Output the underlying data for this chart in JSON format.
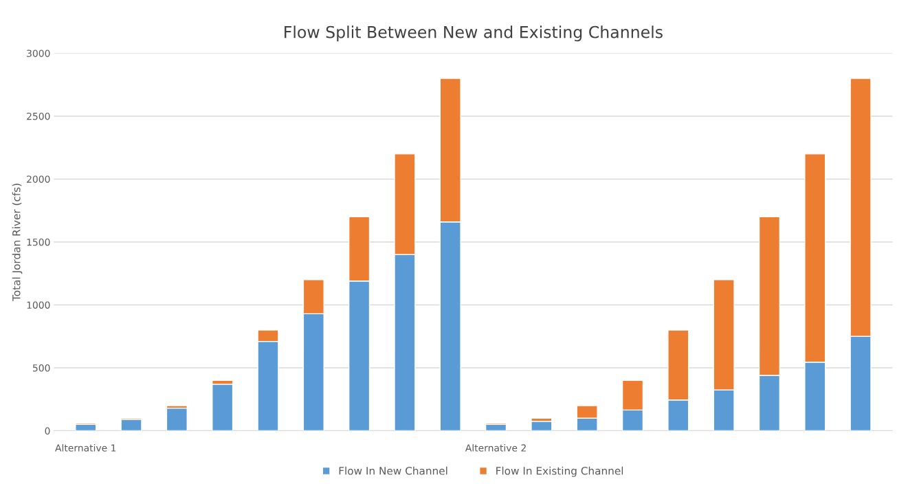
{
  "chart_data": {
    "type": "bar",
    "title": "Flow Split Between New and Existing Channels",
    "ylabel": "Total Jordan River (cfs)",
    "categories": [
      "Alternative 1",
      null,
      null,
      null,
      null,
      null,
      null,
      null,
      null,
      "Alternative 2",
      null,
      null,
      null,
      null,
      null,
      null,
      null,
      null
    ],
    "stacked": true,
    "series": [
      {
        "name": "Flow In New Channel",
        "color": "#5b9bd5",
        "values": [
          50,
          90,
          180,
          370,
          710,
          930,
          1190,
          1400,
          1660,
          50,
          75,
          100,
          165,
          245,
          325,
          440,
          545,
          750
        ]
      },
      {
        "name": "Flow In Existing Channel",
        "color": "#ed7d31",
        "values": [
          10,
          10,
          20,
          30,
          90,
          270,
          510,
          800,
          1140,
          10,
          25,
          100,
          235,
          555,
          875,
          1260,
          1655,
          2050
        ]
      }
    ],
    "ylim": [
      0,
      3000
    ],
    "yticks": [
      0,
      500,
      1000,
      1500,
      2000,
      2500,
      3000
    ],
    "grid": "y",
    "legend": "bottom"
  }
}
